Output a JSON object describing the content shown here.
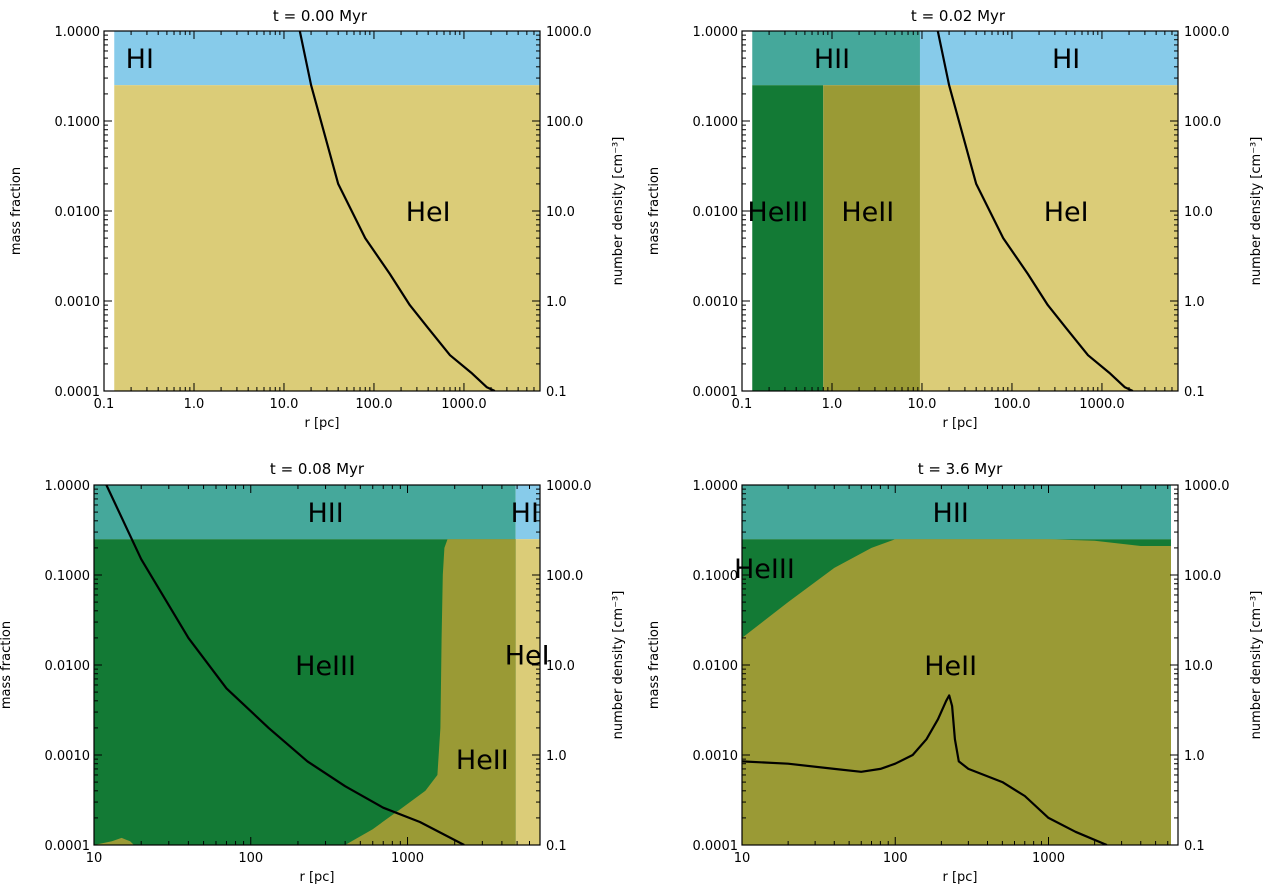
{
  "figure": {
    "colors": {
      "HI": "#87cbea",
      "HII": "#45a89b",
      "HeI": "#dbcc78",
      "HeII": "#9a9a35",
      "HeIII": "#137a35",
      "profile": "#000000"
    }
  },
  "chart_data": [
    {
      "type": "area",
      "title": "t = 0.00 Myr",
      "xlabel": "r [pc]",
      "ylabel": "mass fraction",
      "y2label": "number density [cm⁻³]",
      "xscale": "log",
      "xlim": [
        0.1,
        7000
      ],
      "yscale": "log",
      "ylim": [
        0.0001,
        1.0
      ],
      "y2scale": "log",
      "y2lim": [
        0.1,
        1000
      ],
      "xticks": [
        "0.1",
        "1.0",
        "10.0",
        "100.0",
        "1000.0"
      ],
      "yticks": [
        "0.0001",
        "0.0010",
        "0.0100",
        "0.1000",
        "1.0000"
      ],
      "y2ticks": [
        "0.1",
        "1.0",
        "10.0",
        "100.0",
        "1000.0"
      ],
      "regions": [
        {
          "name": "HI",
          "x": [
            0.13,
            7000
          ],
          "y": [
            0.25,
            1.0
          ]
        },
        {
          "name": "HeI",
          "x": [
            0.13,
            7000
          ],
          "y": [
            0.0001,
            0.25
          ]
        }
      ],
      "labels": [
        {
          "text": "HI",
          "x": 0.25,
          "y": 0.5
        },
        {
          "text": "HeI",
          "x": 400,
          "y": 0.01
        }
      ],
      "profile": {
        "name": "number density",
        "x": [
          15,
          20,
          40,
          80,
          150,
          250,
          400,
          700,
          1200,
          1800,
          2200
        ],
        "y": [
          1000,
          250,
          20,
          5,
          2,
          0.9,
          0.5,
          0.25,
          0.16,
          0.11,
          0.1
        ]
      }
    },
    {
      "type": "area",
      "title": "t = 0.02 Myr",
      "xlabel": "r [pc]",
      "ylabel": "mass fraction",
      "y2label": "number density [cm⁻³]",
      "xscale": "log",
      "xlim": [
        0.1,
        7000
      ],
      "yscale": "log",
      "ylim": [
        0.0001,
        1.0
      ],
      "y2scale": "log",
      "y2lim": [
        0.1,
        1000
      ],
      "xticks": [
        "0.1",
        "1.0",
        "10.0",
        "100.0",
        "1000.0"
      ],
      "yticks": [
        "0.0001",
        "0.0010",
        "0.0100",
        "0.1000",
        "1.0000"
      ],
      "y2ticks": [
        "0.1",
        "1.0",
        "10.0",
        "100.0",
        "1000.0"
      ],
      "regions": [
        {
          "name": "HII",
          "x": [
            0.13,
            9.5
          ],
          "y": [
            0.25,
            1.0
          ]
        },
        {
          "name": "HI",
          "x": [
            9.5,
            7000
          ],
          "y": [
            0.25,
            1.0
          ]
        },
        {
          "name": "HeIII",
          "x": [
            0.13,
            0.8
          ],
          "y": [
            0.0001,
            0.25
          ]
        },
        {
          "name": "HeII",
          "x": [
            0.8,
            9.5
          ],
          "y": [
            0.0001,
            0.25
          ]
        },
        {
          "name": "HeI",
          "x": [
            9.5,
            7000
          ],
          "y": [
            0.0001,
            0.25
          ]
        }
      ],
      "labels": [
        {
          "text": "HII",
          "x": 1.0,
          "y": 0.5
        },
        {
          "text": "HI",
          "x": 400,
          "y": 0.5
        },
        {
          "text": "HeIII",
          "x": 0.25,
          "y": 0.01
        },
        {
          "text": "HeII",
          "x": 2.5,
          "y": 0.01
        },
        {
          "text": "HeI",
          "x": 400,
          "y": 0.01
        }
      ],
      "profile": {
        "name": "number density",
        "x": [
          15,
          20,
          40,
          80,
          150,
          250,
          400,
          700,
          1200,
          1800,
          2200
        ],
        "y": [
          1000,
          250,
          20,
          5,
          2,
          0.9,
          0.5,
          0.25,
          0.16,
          0.11,
          0.1
        ]
      }
    },
    {
      "type": "area",
      "title": "t = 0.08 Myr",
      "xlabel": "r [pc]",
      "ylabel": "mass fraction",
      "y2label": "number density [cm⁻³]",
      "xscale": "log",
      "xlim": [
        10,
        7000
      ],
      "yscale": "log",
      "ylim": [
        0.0001,
        1.0
      ],
      "y2scale": "log",
      "y2lim": [
        0.1,
        1000
      ],
      "xticks": [
        "10",
        "100",
        "1000"
      ],
      "yticks": [
        "0.0001",
        "0.0010",
        "0.0100",
        "0.1000",
        "1.0000"
      ],
      "y2ticks": [
        "0.1",
        "1.0",
        "10.0",
        "100.0",
        "1000.0"
      ],
      "regions": [
        {
          "name": "HII",
          "x": [
            10,
            4900
          ],
          "y": [
            0.25,
            1.0
          ]
        },
        {
          "name": "HI",
          "x": [
            4900,
            7000
          ],
          "y": [
            0.25,
            1.0
          ]
        },
        {
          "name": "HeIII",
          "x": [
            10,
            4900
          ],
          "y": [
            0.0001,
            0.25
          ]
        },
        {
          "name": "HeI",
          "x": [
            4900,
            7000
          ],
          "y": [
            0.0001,
            0.25
          ]
        }
      ],
      "heii_boundary": {
        "x": [
          10,
          13,
          15,
          17,
          18,
          400,
          600,
          900,
          1300,
          1550,
          1620,
          1650,
          1680,
          1720,
          1800,
          4900,
          4900
        ],
        "y": [
          0.0001,
          0.00011,
          0.00012,
          0.00011,
          0.0001,
          0.0001,
          0.00015,
          0.00025,
          0.0004,
          0.0006,
          0.002,
          0.02,
          0.1,
          0.2,
          0.25,
          0.25,
          0.0001
        ]
      },
      "labels": [
        {
          "text": "HII",
          "x": 300,
          "y": 0.5
        },
        {
          "text": "HI",
          "x": 5600,
          "y": 0.5
        },
        {
          "text": "HeIII",
          "x": 300,
          "y": 0.01
        },
        {
          "text": "HeII",
          "x": 3000,
          "y": 0.0009
        },
        {
          "text": "HeI",
          "x": 5800,
          "y": 0.013
        }
      ],
      "profile": {
        "name": "number density",
        "x": [
          12,
          20,
          40,
          70,
          130,
          230,
          400,
          700,
          1200,
          2300
        ],
        "y": [
          1000,
          150,
          20,
          5.5,
          2,
          0.85,
          0.45,
          0.26,
          0.18,
          0.1
        ]
      }
    },
    {
      "type": "area",
      "title": "t = 3.6 Myr",
      "xlabel": "r [pc]",
      "ylabel": "mass fraction",
      "y2label": "number density [cm⁻³]",
      "xscale": "log",
      "xlim": [
        10,
        7000
      ],
      "yscale": "log",
      "ylim": [
        0.0001,
        1.0
      ],
      "y2scale": "log",
      "y2lim": [
        0.1,
        1000
      ],
      "xticks": [
        "10",
        "100",
        "1000"
      ],
      "yticks": [
        "0.0001",
        "0.0010",
        "0.0100",
        "0.1000",
        "1.0000"
      ],
      "y2ticks": [
        "0.1",
        "1.0",
        "10.0",
        "100.0",
        "1000.0"
      ],
      "regions": [
        {
          "name": "HII",
          "x": [
            10,
            6300
          ],
          "y": [
            0.25,
            1.0
          ]
        },
        {
          "name": "HeIII",
          "x": [
            10,
            6300
          ],
          "y": [
            0.0001,
            0.25
          ]
        }
      ],
      "heii_boundary": {
        "x": [
          10,
          20,
          40,
          70,
          100,
          300,
          1000,
          2000,
          4000,
          6300,
          6300,
          10
        ],
        "y": [
          0.02,
          0.05,
          0.12,
          0.2,
          0.25,
          0.25,
          0.25,
          0.24,
          0.21,
          0.21,
          0.0001,
          0.0001
        ]
      },
      "labels": [
        {
          "text": "HII",
          "x": 230,
          "y": 0.5
        },
        {
          "text": "HeIII",
          "x": 14,
          "y": 0.12
        },
        {
          "text": "HeII",
          "x": 230,
          "y": 0.01
        }
      ],
      "profile": {
        "name": "number density",
        "x": [
          10,
          20,
          40,
          60,
          80,
          100,
          130,
          160,
          190,
          215,
          225,
          235,
          245,
          260,
          300,
          500,
          700,
          1000,
          1500,
          2400
        ],
        "y": [
          0.85,
          0.8,
          0.7,
          0.65,
          0.7,
          0.8,
          1.0,
          1.5,
          2.5,
          4.0,
          4.6,
          3.5,
          1.5,
          0.85,
          0.7,
          0.5,
          0.35,
          0.2,
          0.14,
          0.1
        ]
      }
    }
  ]
}
